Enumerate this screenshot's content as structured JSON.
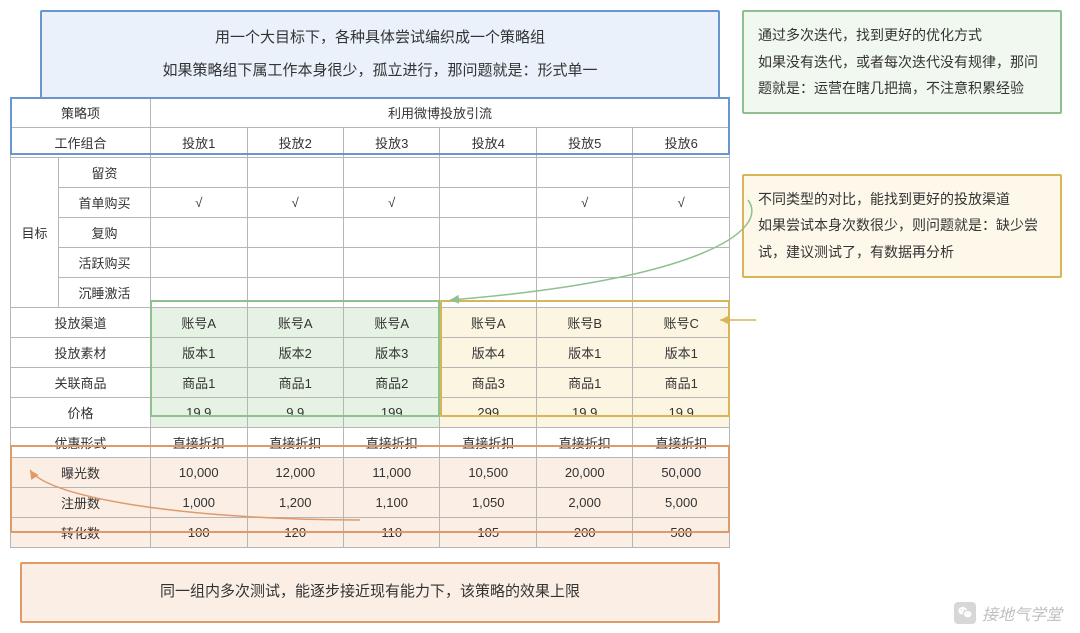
{
  "top_note": {
    "line1": "用一个大目标下，各种具体尝试编织成一个策略组",
    "line2": "如果策略组下属工作本身很少，孤立进行，那问题就是：形式单一"
  },
  "green_note": "通过多次迭代，找到更好的优化方式\n如果没有迭代，或者每次迭代没有规律，那问题就是：运营在瞎几把搞，不注意积累经验",
  "yellow_note": "不同类型的对比，能找到更好的投放渠道\n如果尝试本身次数很少，则问题就是：缺少尝试，建议测试了，有数据再分析",
  "bottom_note": "同一组内多次测试，能逐步接近现有能力下，该策略的效果上限",
  "watermark": "接地气学堂",
  "table": {
    "type": "table",
    "header": {
      "strategy_label": "策略项",
      "strategy_value": "利用微博投放引流",
      "work_label": "工作组合",
      "cols": [
        "投放1",
        "投放2",
        "投放3",
        "投放4",
        "投放5",
        "投放6"
      ]
    },
    "goal_label": "目标",
    "goal_rows": [
      {
        "label": "留资",
        "vals": [
          "",
          "",
          "",
          "",
          "",
          ""
        ]
      },
      {
        "label": "首单购买",
        "vals": [
          "√",
          "√",
          "√",
          "",
          "√",
          "√"
        ]
      },
      {
        "label": "复购",
        "vals": [
          "",
          "",
          "",
          "",
          "",
          ""
        ]
      },
      {
        "label": "活跃购买",
        "vals": [
          "",
          "",
          "",
          "",
          "",
          ""
        ]
      },
      {
        "label": "沉睡激活",
        "vals": [
          "",
          "",
          "",
          "",
          "",
          ""
        ]
      }
    ],
    "attr_rows": [
      {
        "label": "投放渠道",
        "vals": [
          "账号A",
          "账号A",
          "账号A",
          "账号A",
          "账号B",
          "账号C"
        ],
        "hl": [
          "g",
          "g",
          "g",
          "y",
          "y",
          "y"
        ]
      },
      {
        "label": "投放素材",
        "vals": [
          "版本1",
          "版本2",
          "版本3",
          "版本4",
          "版本1",
          "版本1"
        ],
        "hl": [
          "g",
          "g",
          "g",
          "y",
          "y",
          "y"
        ]
      },
      {
        "label": "关联商品",
        "vals": [
          "商品1",
          "商品1",
          "商品2",
          "商品3",
          "商品1",
          "商品1"
        ],
        "hl": [
          "g",
          "g",
          "g",
          "y",
          "y",
          "y"
        ]
      },
      {
        "label": "价格",
        "vals": [
          "19.9",
          "9.9",
          "199",
          "299",
          "19.9",
          "19.9"
        ],
        "hl": [
          "g",
          "g",
          "g",
          "y",
          "y",
          "y"
        ]
      },
      {
        "label": "优惠形式",
        "vals": [
          "直接折扣",
          "直接折扣",
          "直接折扣",
          "直接折扣",
          "直接折扣",
          "直接折扣"
        ],
        "hl": [
          "",
          "",
          "",
          "",
          "",
          ""
        ]
      }
    ],
    "metric_rows": [
      {
        "label": "曝光数",
        "vals": [
          "10,000",
          "12,000",
          "11,000",
          "10,500",
          "20,000",
          "50,000"
        ]
      },
      {
        "label": "注册数",
        "vals": [
          "1,000",
          "1,200",
          "1,100",
          "1,050",
          "2,000",
          "5,000"
        ]
      },
      {
        "label": "转化数",
        "vals": [
          "100",
          "120",
          "110",
          "105",
          "200",
          "500"
        ]
      }
    ]
  },
  "colors": {
    "blue": "#6a96d0",
    "green": "#8fc08f",
    "yellow": "#d9b55a",
    "orange": "#e09a6a",
    "blue_bg": "#eaf1fb",
    "green_bg": "#e6f2e3",
    "yellow_bg": "#fbf5e1",
    "orange_bg": "#fbeee5",
    "border": "#b6b6b6"
  }
}
